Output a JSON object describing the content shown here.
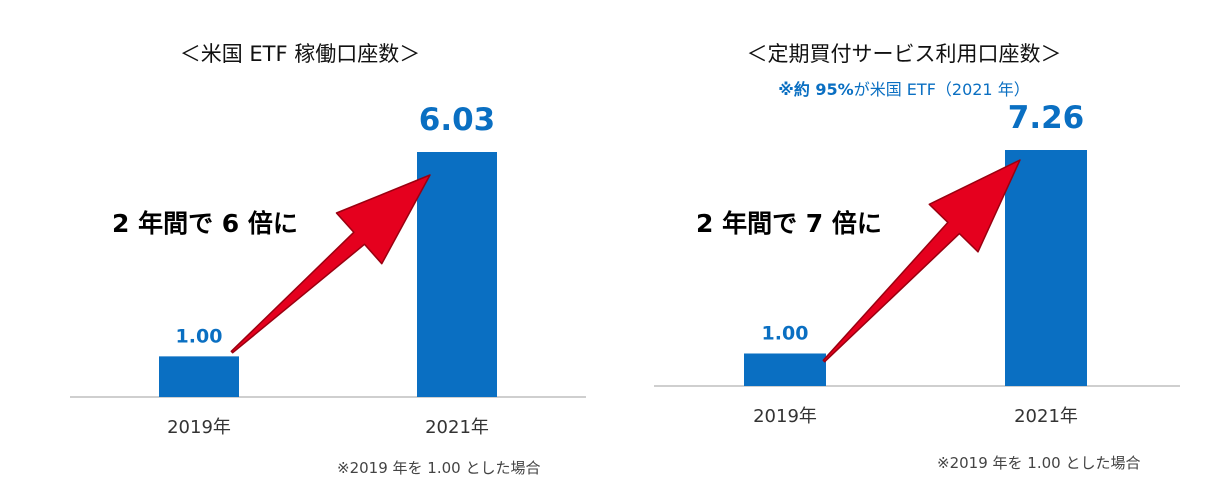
{
  "chart_data": [
    {
      "type": "bar",
      "title": "＜米国 ETF 稼働口座数＞",
      "subtitle": "",
      "categories": [
        "2019年",
        "2021年"
      ],
      "values": [
        1.0,
        6.03
      ],
      "value_labels": [
        "1.00",
        "6.03"
      ],
      "ylim": [
        0,
        6.03
      ],
      "grid": false,
      "annotation": "2 年間で 6 倍に",
      "footnote": "※2019 年を 1.00 とした場合",
      "bar_color": "#0a6fc2",
      "arrow_color": "#e5001e"
    },
    {
      "type": "bar",
      "title": "＜定期買付サービス利用口座数＞",
      "subtitle_bold": "※約 95%",
      "subtitle_rest": "が米国 ETF（2021 年）",
      "categories": [
        "2019年",
        "2021年"
      ],
      "values": [
        1.0,
        7.26
      ],
      "value_labels": [
        "1.00",
        "7.26"
      ],
      "ylim": [
        0,
        7.26
      ],
      "grid": false,
      "annotation": "2 年間で 7 倍に",
      "footnote": "※2019 年を 1.00 とした場合",
      "bar_color": "#0a6fc2",
      "arrow_color": "#e5001e"
    }
  ]
}
